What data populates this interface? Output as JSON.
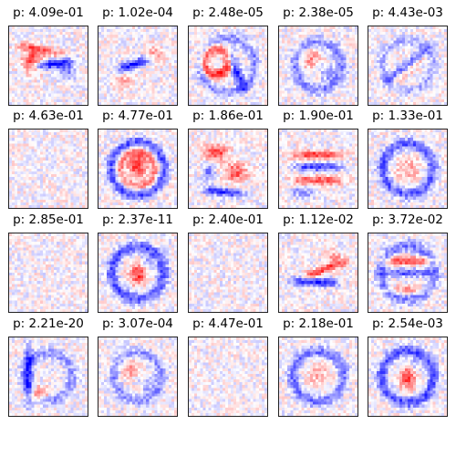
{
  "chart_data": {
    "type": "heatmap",
    "layout": {
      "rows": 4,
      "cols": 5
    },
    "colormap": {
      "negative": "#0000ff",
      "zero": "#ffffff",
      "positive": "#ff0000"
    },
    "grid_resolution": 28,
    "panels": [
      {
        "title": "p: 4.09e-01",
        "pattern": "horizontal-bar-mixed",
        "intensity": 0.9
      },
      {
        "title": "p: 1.02e-04",
        "pattern": "diagonal-stroke-blue",
        "intensity": 0.85
      },
      {
        "title": "p: 2.48e-05",
        "pattern": "loop-red-blue",
        "intensity": 0.9
      },
      {
        "title": "p: 2.38e-05",
        "pattern": "ring-mixed",
        "intensity": 0.75
      },
      {
        "title": "p: 4.43e-03",
        "pattern": "diagonal-ring",
        "intensity": 0.75
      },
      {
        "title": "p: 4.63e-01",
        "pattern": "noise",
        "intensity": 0.2
      },
      {
        "title": "p: 4.77e-01",
        "pattern": "ring-red-center",
        "intensity": 0.85
      },
      {
        "title": "p: 1.86e-01",
        "pattern": "blobs-red-blue",
        "intensity": 0.85
      },
      {
        "title": "p: 1.90e-01",
        "pattern": "stripes-red-blue",
        "intensity": 0.85
      },
      {
        "title": "p: 1.33e-01",
        "pattern": "ring-blue",
        "intensity": 0.8
      },
      {
        "title": "p: 2.85e-01",
        "pattern": "noise",
        "intensity": 0.2
      },
      {
        "title": "p: 2.37e-11",
        "pattern": "ring-blue-red-center",
        "intensity": 0.8
      },
      {
        "title": "p: 2.40e-01",
        "pattern": "noise",
        "intensity": 0.2
      },
      {
        "title": "p: 1.12e-02",
        "pattern": "stripes-blue-red",
        "intensity": 0.85
      },
      {
        "title": "p: 3.72e-02",
        "pattern": "ring-red-blue",
        "intensity": 0.85
      },
      {
        "title": "p: 2.21e-20",
        "pattern": "loop-blue-red-bottom",
        "intensity": 0.8
      },
      {
        "title": "p: 3.07e-04",
        "pattern": "ring-mixed",
        "intensity": 0.7
      },
      {
        "title": "p: 4.47e-01",
        "pattern": "noise",
        "intensity": 0.2
      },
      {
        "title": "p: 2.18e-01",
        "pattern": "ring-blue",
        "intensity": 0.7
      },
      {
        "title": "p: 2.54e-03",
        "pattern": "ring-blue-red-center",
        "intensity": 0.8
      }
    ]
  }
}
